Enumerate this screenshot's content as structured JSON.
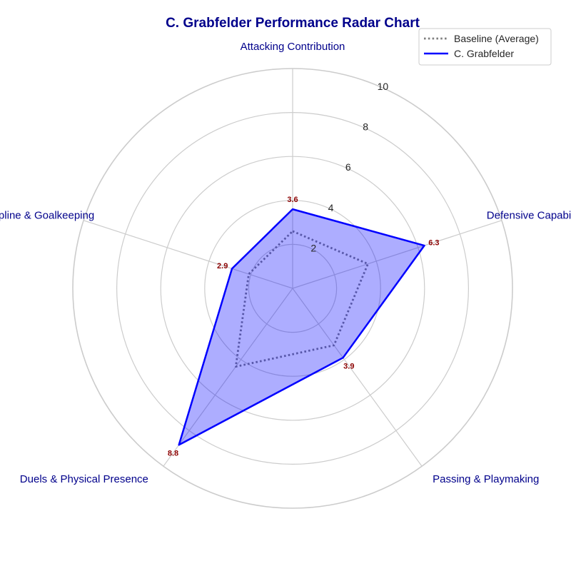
{
  "chart_data": {
    "type": "radar",
    "title": "C. Grabfelder Performance Radar Chart",
    "categories": [
      "Attacking Contribution",
      "Defensive Capability",
      "Passing & Playmaking",
      "Duels & Physical Presence",
      "Discipline & Goalkeeping"
    ],
    "series": [
      {
        "name": "Baseline (Average)",
        "values": [
          2.6,
          3.6,
          3.2,
          4.4,
          2.1
        ],
        "color": "#808080",
        "style": "dotted",
        "fill": false
      },
      {
        "name": "C. Grabfelder",
        "values": [
          3.6,
          6.3,
          3.9,
          8.8,
          2.9
        ],
        "color": "#0000ff",
        "style": "solid",
        "fill": true,
        "fill_color": "#0000ff"
      }
    ],
    "value_labels": [
      "3.6",
      "6.3",
      "3.9",
      "8.8",
      "2.9"
    ],
    "radial_ticks": [
      2,
      4,
      6,
      8,
      10
    ],
    "radial_tick_labels": [
      "2",
      "4",
      "6",
      "8",
      "10"
    ],
    "rlim": [
      0,
      10
    ],
    "grid": true,
    "legend_position": "top-right"
  }
}
